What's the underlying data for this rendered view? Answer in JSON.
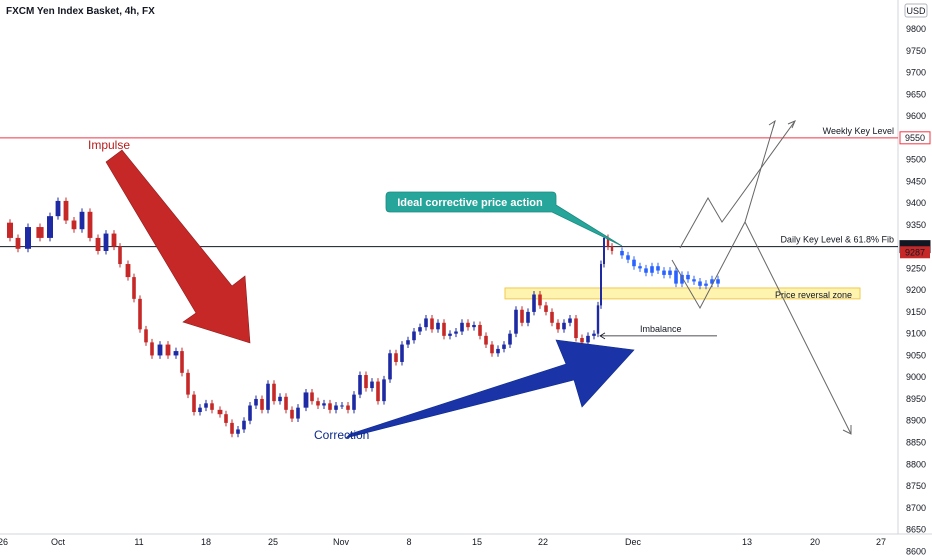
{
  "header": {
    "title": "FXCM Yen Index Basket, 4h, FX",
    "currency": "USD"
  },
  "chart_data": {
    "type": "candlestick",
    "title": "FXCM Yen Index Basket, 4h, FX",
    "yticks": [
      9800,
      9750,
      9700,
      9650,
      9600,
      9550,
      9500,
      9450,
      9400,
      9350,
      9300,
      9250,
      9200,
      9150,
      9100,
      9050,
      9000,
      8950,
      8900,
      8850,
      8800,
      8750,
      8700,
      8650,
      8600
    ],
    "yticks_visible": [
      "9800",
      "9750",
      "9700",
      "9650",
      "9600",
      "9500",
      "9450",
      "9400",
      "9350",
      "9250",
      "9200",
      "9150",
      "9100",
      "9050",
      "9000",
      "8950",
      "8900",
      "8850",
      "8800",
      "8750",
      "8700",
      "8650",
      "8600"
    ],
    "ylim": [
      8575,
      9825
    ],
    "xticks": [
      "26",
      "Oct",
      "11",
      "18",
      "25",
      "Nov",
      "8",
      "15",
      "22",
      "Dec",
      "13",
      "20",
      "27"
    ],
    "price_path": [
      [
        0,
        9355
      ],
      [
        10,
        9320
      ],
      [
        18,
        9295
      ],
      [
        28,
        9345
      ],
      [
        40,
        9320
      ],
      [
        50,
        9370
      ],
      [
        58,
        9405
      ],
      [
        66,
        9360
      ],
      [
        74,
        9340
      ],
      [
        82,
        9380
      ],
      [
        90,
        9320
      ],
      [
        98,
        9290
      ],
      [
        106,
        9330
      ],
      [
        114,
        9300
      ],
      [
        120,
        9260
      ],
      [
        128,
        9230
      ],
      [
        134,
        9180
      ],
      [
        140,
        9110
      ],
      [
        146,
        9080
      ],
      [
        152,
        9050
      ],
      [
        160,
        9075
      ],
      [
        168,
        9050
      ],
      [
        176,
        9060
      ],
      [
        182,
        9010
      ],
      [
        188,
        8960
      ],
      [
        194,
        8920
      ],
      [
        200,
        8930
      ],
      [
        206,
        8940
      ],
      [
        212,
        8925
      ],
      [
        220,
        8915
      ],
      [
        226,
        8895
      ],
      [
        232,
        8870
      ],
      [
        238,
        8880
      ],
      [
        244,
        8900
      ],
      [
        250,
        8935
      ],
      [
        256,
        8950
      ],
      [
        262,
        8925
      ],
      [
        268,
        8985
      ],
      [
        274,
        8945
      ],
      [
        280,
        8955
      ],
      [
        286,
        8925
      ],
      [
        292,
        8905
      ],
      [
        298,
        8930
      ],
      [
        306,
        8965
      ],
      [
        312,
        8945
      ],
      [
        318,
        8935
      ],
      [
        324,
        8940
      ],
      [
        330,
        8925
      ],
      [
        336,
        8935
      ],
      [
        342,
        8935
      ],
      [
        348,
        8925
      ],
      [
        354,
        8960
      ],
      [
        360,
        9005
      ],
      [
        366,
        8975
      ],
      [
        372,
        8990
      ],
      [
        378,
        8945
      ],
      [
        384,
        8995
      ],
      [
        390,
        9055
      ],
      [
        396,
        9035
      ],
      [
        402,
        9075
      ],
      [
        408,
        9085
      ],
      [
        414,
        9105
      ],
      [
        420,
        9115
      ],
      [
        426,
        9135
      ],
      [
        432,
        9110
      ],
      [
        438,
        9125
      ],
      [
        444,
        9095
      ],
      [
        450,
        9100
      ],
      [
        456,
        9105
      ],
      [
        462,
        9125
      ],
      [
        468,
        9115
      ],
      [
        474,
        9120
      ],
      [
        480,
        9095
      ],
      [
        486,
        9075
      ],
      [
        492,
        9055
      ],
      [
        498,
        9065
      ],
      [
        504,
        9075
      ],
      [
        510,
        9100
      ],
      [
        516,
        9155
      ],
      [
        522,
        9125
      ],
      [
        528,
        9150
      ],
      [
        534,
        9190
      ],
      [
        540,
        9165
      ],
      [
        546,
        9150
      ],
      [
        552,
        9125
      ],
      [
        558,
        9110
      ],
      [
        564,
        9125
      ],
      [
        570,
        9135
      ],
      [
        576,
        9090
      ],
      [
        582,
        9080
      ],
      [
        588,
        9095
      ],
      [
        594,
        9100
      ],
      [
        598,
        9165
      ],
      [
        601,
        9260
      ],
      [
        604,
        9320
      ],
      [
        608,
        9300
      ],
      [
        612,
        9290
      ]
    ],
    "projected_path": [
      [
        616,
        9290
      ],
      [
        622,
        9280
      ],
      [
        628,
        9270
      ],
      [
        634,
        9255
      ],
      [
        640,
        9250
      ],
      [
        646,
        9240
      ],
      [
        652,
        9255
      ],
      [
        658,
        9245
      ],
      [
        664,
        9235
      ],
      [
        670,
        9245
      ],
      [
        676,
        9215
      ],
      [
        682,
        9235
      ],
      [
        688,
        9225
      ],
      [
        694,
        9220
      ],
      [
        700,
        9210
      ],
      [
        706,
        9215
      ],
      [
        712,
        9225
      ],
      [
        718,
        9215
      ]
    ],
    "levels": [
      {
        "name": "Weekly Key Level",
        "value": 9550,
        "color": "#f23645"
      },
      {
        "name": "Daily Key Level & 61.8% Fib",
        "value": 9300,
        "color": "#131722"
      }
    ],
    "current_price": 9287,
    "zone": {
      "label": "Price reversal zone",
      "from": 9180,
      "to": 9205
    },
    "imbalance": {
      "label": "Imbalance",
      "value": 9095
    },
    "annotations": {
      "impulse": "Impulse",
      "correction": "Correction",
      "callout": "Ideal corrective price action"
    }
  },
  "colors": {
    "up": "#1e2aa3",
    "down": "#c62828",
    "projected": "#2962ff",
    "impulse_arrow": "#b71c1c",
    "correction_arrow": "#0d2a8a",
    "callout_bg": "#26a69a",
    "zone_fill": "#fff3b0",
    "zone_border": "#f2c94c",
    "path_lines": "#555555"
  }
}
